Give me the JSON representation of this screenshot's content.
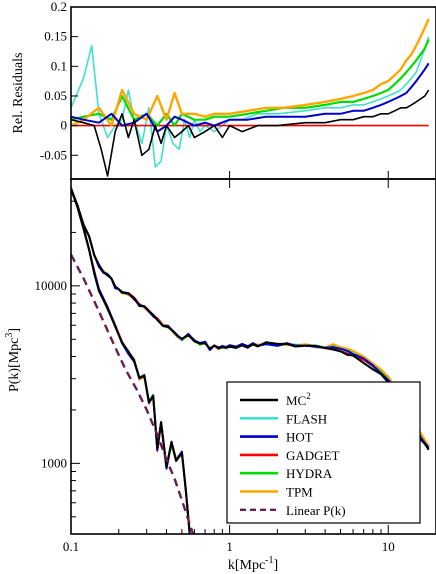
{
  "chart_data": [
    {
      "type": "line",
      "panel": "residuals",
      "ylabel": "Rel. Residuals",
      "xscale": "log",
      "xlim": [
        0.1,
        20
      ],
      "ylim": [
        -0.09,
        0.2
      ],
      "xticks": [
        0.1,
        1,
        10
      ],
      "yticks": [
        -0.05,
        0,
        0.05,
        0.1,
        0.15,
        0.2
      ],
      "ytick_labels": [
        "-0.05",
        "0",
        "0.05",
        "0.1",
        "0.15",
        "0.2"
      ],
      "series": [
        {
          "color": "#40e0d0",
          "width": 1.6,
          "x": [
            0.1,
            0.12,
            0.135,
            0.15,
            0.17,
            0.19,
            0.21,
            0.23,
            0.25,
            0.28,
            0.31,
            0.34,
            0.37,
            0.4,
            0.44,
            0.48,
            0.52,
            0.56,
            0.6,
            0.65,
            0.7,
            0.8,
            0.9,
            1.0,
            1.2,
            1.5,
            2,
            3,
            4,
            5,
            6,
            7,
            8,
            9,
            10,
            11,
            12,
            13,
            14,
            15,
            16,
            17,
            18
          ],
          "y": [
            0.03,
            0.08,
            0.135,
            0.02,
            -0.02,
            0.0,
            0.01,
            0.06,
            0.01,
            -0.03,
            0.03,
            -0.07,
            -0.06,
            0.0,
            -0.03,
            -0.04,
            0.01,
            -0.02,
            0.01,
            -0.01,
            0.0,
            -0.01,
            0.0,
            0.01,
            0.01,
            0.02,
            0.02,
            0.025,
            0.03,
            0.03,
            0.035,
            0.035,
            0.04,
            0.045,
            0.05,
            0.055,
            0.06,
            0.07,
            0.08,
            0.09,
            0.11,
            0.13,
            0.15
          ]
        },
        {
          "color": "#ff0000",
          "width": 1.6,
          "x": [
            0.1,
            0.15,
            0.2,
            0.3,
            0.5,
            1,
            2,
            5,
            10,
            18
          ],
          "y": [
            0,
            0,
            0,
            0,
            0,
            0,
            0,
            0,
            0,
            0
          ]
        },
        {
          "color": "#00dd00",
          "width": 2.2,
          "x": [
            0.1,
            0.12,
            0.15,
            0.18,
            0.21,
            0.25,
            0.3,
            0.35,
            0.4,
            0.45,
            0.5,
            0.6,
            0.7,
            0.8,
            1.0,
            1.3,
            1.7,
            2.2,
            3,
            4,
            5,
            6,
            7,
            8,
            9,
            10,
            11,
            12,
            13,
            14,
            15,
            16,
            17,
            18
          ],
          "y": [
            0.01,
            0.015,
            0.02,
            0.01,
            0.05,
            0.01,
            0.02,
            0.0,
            0.02,
            0.0,
            0.02,
            0.01,
            0.01,
            0.015,
            0.015,
            0.02,
            0.025,
            0.03,
            0.03,
            0.035,
            0.04,
            0.04,
            0.045,
            0.05,
            0.055,
            0.06,
            0.07,
            0.08,
            0.09,
            0.1,
            0.11,
            0.12,
            0.13,
            0.145
          ]
        },
        {
          "color": "#ffa500",
          "width": 2.4,
          "x": [
            0.1,
            0.12,
            0.15,
            0.18,
            0.21,
            0.25,
            0.3,
            0.35,
            0.4,
            0.45,
            0.5,
            0.6,
            0.7,
            0.8,
            1.0,
            1.3,
            1.7,
            2.2,
            3,
            4,
            5,
            6,
            7,
            8,
            9,
            10,
            11,
            12,
            13,
            14,
            15,
            16,
            17,
            18
          ],
          "y": [
            0.0,
            0.01,
            0.03,
            0.0,
            0.06,
            0.02,
            0.01,
            0.05,
            0.01,
            0.055,
            0.02,
            0.02,
            0.015,
            0.02,
            0.02,
            0.025,
            0.03,
            0.03,
            0.035,
            0.04,
            0.045,
            0.05,
            0.055,
            0.06,
            0.07,
            0.075,
            0.085,
            0.095,
            0.11,
            0.12,
            0.135,
            0.15,
            0.165,
            0.18
          ]
        },
        {
          "color": "#0000cd",
          "width": 2.0,
          "x": [
            0.1,
            0.12,
            0.15,
            0.18,
            0.21,
            0.25,
            0.3,
            0.35,
            0.4,
            0.45,
            0.5,
            0.6,
            0.7,
            0.8,
            1.0,
            1.3,
            1.7,
            2.2,
            3,
            4,
            5,
            6,
            7,
            8,
            9,
            10,
            11,
            12,
            13,
            14,
            15,
            16,
            17,
            18
          ],
          "y": [
            0.015,
            0.01,
            0.005,
            0.02,
            0.0,
            0.005,
            0.02,
            -0.01,
            0.0,
            0.015,
            0.01,
            0.0,
            0.005,
            0.0,
            0.01,
            0.01,
            0.015,
            0.015,
            0.015,
            0.02,
            0.02,
            0.025,
            0.025,
            0.03,
            0.035,
            0.04,
            0.045,
            0.05,
            0.055,
            0.065,
            0.075,
            0.085,
            0.095,
            0.105
          ]
        },
        {
          "color": "#000000",
          "width": 1.6,
          "x": [
            0.1,
            0.12,
            0.14,
            0.155,
            0.17,
            0.19,
            0.21,
            0.23,
            0.25,
            0.28,
            0.31,
            0.34,
            0.37,
            0.4,
            0.45,
            0.5,
            0.55,
            0.6,
            0.7,
            0.8,
            0.9,
            1.0,
            1.2,
            1.5,
            2,
            3,
            4,
            5,
            6,
            7,
            8,
            9,
            10,
            11,
            12,
            13,
            14,
            15,
            16,
            17,
            18
          ],
          "y": [
            0.01,
            0.005,
            0.0,
            -0.04,
            -0.085,
            -0.01,
            0.02,
            -0.02,
            0.01,
            -0.05,
            -0.04,
            0.0,
            -0.03,
            0.0,
            -0.02,
            -0.01,
            0.0,
            -0.02,
            -0.01,
            0.0,
            -0.02,
            0.0,
            -0.01,
            0.0,
            0.0,
            0.005,
            0.005,
            0.01,
            0.01,
            0.015,
            0.015,
            0.02,
            0.02,
            0.025,
            0.03,
            0.03,
            0.035,
            0.04,
            0.045,
            0.05,
            0.06
          ]
        }
      ]
    },
    {
      "type": "line",
      "panel": "power-spectrum",
      "xlabel": "k[Mpc",
      "xlabel_sup": "-1",
      "xlabel_suffix": "]",
      "ylabel": "P(k)[Mpc",
      "ylabel_sup": "3",
      "ylabel_suffix": "]",
      "xscale": "log",
      "yscale": "log",
      "xlim": [
        0.1,
        20
      ],
      "ylim": [
        400,
        40000
      ],
      "xticks": [
        0.1,
        1,
        10
      ],
      "xtick_labels": [
        "0.1",
        "1",
        "10"
      ],
      "yticks": [
        1000,
        10000
      ],
      "ytick_labels": [
        "1000",
        "10000"
      ],
      "legend_position": "bottom-right",
      "series": [
        {
          "name": "MC",
          "name_sup": "2",
          "color": "#000000",
          "width": 2.0,
          "dashed": false
        },
        {
          "name": "FLASH",
          "color": "#40e0d0",
          "width": 2.0,
          "dashed": false
        },
        {
          "name": "HOT",
          "color": "#0000cd",
          "width": 2.0,
          "dashed": false
        },
        {
          "name": "GADGET",
          "color": "#ff0000",
          "width": 2.0,
          "dashed": false
        },
        {
          "name": "HYDRA",
          "color": "#00dd00",
          "width": 2.0,
          "dashed": false
        },
        {
          "name": "TPM",
          "color": "#ffa500",
          "width": 2.0,
          "dashed": false
        },
        {
          "name": "Linear P(k)",
          "color": "#6b1e4f",
          "width": 2.4,
          "dashed": true
        }
      ],
      "upper_curve": {
        "x": [
          0.1,
          0.11,
          0.12,
          0.13,
          0.14,
          0.15,
          0.16,
          0.17,
          0.18,
          0.19,
          0.2,
          0.21,
          0.23,
          0.25,
          0.27,
          0.29,
          0.31,
          0.33,
          0.35,
          0.38,
          0.41,
          0.44,
          0.47,
          0.5,
          0.55,
          0.6,
          0.65,
          0.7,
          0.75,
          0.8,
          0.85,
          0.9,
          0.95,
          1.0,
          1.1,
          1.2,
          1.3,
          1.4,
          1.5,
          1.7,
          2.0,
          2.3,
          2.6,
          3,
          3.5,
          4,
          4.5,
          5,
          5.5,
          6,
          7,
          8,
          9,
          10,
          11,
          12,
          13,
          14,
          15,
          16,
          17,
          18
        ],
        "y": [
          35000,
          28000,
          22000,
          19000,
          15000,
          13000,
          12000,
          11500,
          11000,
          9800,
          9500,
          9200,
          9000,
          8500,
          7800,
          7600,
          7200,
          6800,
          6500,
          6000,
          5900,
          5500,
          5200,
          5000,
          5300,
          4900,
          4700,
          4800,
          4400,
          4600,
          4450,
          4550,
          4480,
          4600,
          4500,
          4650,
          4550,
          4700,
          4600,
          4750,
          4650,
          4700,
          4600,
          4650,
          4550,
          4500,
          4450,
          4350,
          4200,
          4100,
          3800,
          3500,
          3200,
          2900,
          2600,
          2300,
          2000,
          1800,
          1600,
          1400,
          1300,
          1200
        ]
      },
      "lower_curve": {
        "x": [
          0.1,
          0.11,
          0.12,
          0.13,
          0.14,
          0.15,
          0.17,
          0.19,
          0.21,
          0.23,
          0.25,
          0.27,
          0.29,
          0.31,
          0.33,
          0.35,
          0.37,
          0.4,
          0.43,
          0.46,
          0.5,
          0.53,
          0.56
        ],
        "y": [
          35000,
          28000,
          21000,
          16000,
          12000,
          9500,
          7500,
          6000,
          4800,
          4200,
          3800,
          3000,
          3100,
          2200,
          2400,
          1200,
          1700,
          950,
          1300,
          1050,
          1150,
          700,
          400
        ]
      },
      "linear_curve": {
        "x": [
          0.1,
          0.12,
          0.15,
          0.18,
          0.22,
          0.26,
          0.3,
          0.35,
          0.4,
          0.45,
          0.5,
          0.55,
          0.6
        ],
        "y": [
          15000,
          11000,
          7200,
          5000,
          3400,
          2600,
          2000,
          1450,
          1050,
          820,
          620,
          480,
          380
        ]
      }
    }
  ]
}
